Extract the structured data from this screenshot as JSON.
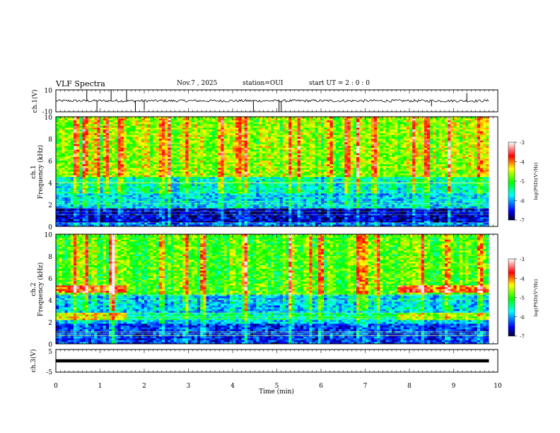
{
  "header": {
    "title": "VLF Spectra",
    "date": "Nov.7 , 2025",
    "station": "station=OUI",
    "start": "start UT =  2 : 0 : 0"
  },
  "panels": {
    "ch1_wave": {
      "ylabel": "ch.1(V)",
      "yticks": [
        "10",
        "-10"
      ]
    },
    "ch1_spec": {
      "ylabel_ch": "ch.1",
      "ylabel": "Frequency (kHz)",
      "yticks": [
        "10",
        "8",
        "6",
        "4",
        "2",
        "0"
      ]
    },
    "ch2_spec": {
      "ylabel_ch": "ch.2",
      "ylabel": "Frequency (kHz)",
      "yticks": [
        "10",
        "8",
        "6",
        "4",
        "2",
        "0"
      ]
    },
    "ch3_wave": {
      "ylabel": "ch.3(V)",
      "yticks": [
        "5",
        "-5"
      ]
    }
  },
  "colorbar": {
    "label": "log(PSD)(V²/Hz)",
    "ticks": [
      "-3",
      "-4",
      "-5",
      "-6",
      "-7"
    ],
    "colors": [
      "#ffffff",
      "#ff0000",
      "#ffff00",
      "#00ff00",
      "#00ffff",
      "#0000ff",
      "#000033"
    ]
  },
  "xaxis": {
    "label": "Time (min)",
    "ticks": [
      "0",
      "1",
      "2",
      "3",
      "4",
      "5",
      "6",
      "7",
      "8",
      "9",
      "10"
    ]
  },
  "chart_data": [
    {
      "type": "line",
      "title": "VLF Spectra",
      "ylabel": "ch.1(V)",
      "xlabel": "Time (min)",
      "xlim": [
        0,
        10
      ],
      "ylim": [
        -10,
        10
      ],
      "data_end_min": 9.8,
      "baseline_v": 0,
      "spikes": [
        {
          "x": 0.7,
          "y": 10
        },
        {
          "x": 0.93,
          "y": -10
        },
        {
          "x": 1.25,
          "y": 10
        },
        {
          "x": 1.6,
          "y": 10
        },
        {
          "x": 1.8,
          "y": -10
        },
        {
          "x": 2.0,
          "y": -8
        },
        {
          "x": 4.47,
          "y": -10
        },
        {
          "x": 5.05,
          "y": -10
        },
        {
          "x": 5.1,
          "y": -10
        },
        {
          "x": 9.3,
          "y": 7
        },
        {
          "x": 8.5,
          "y": -5
        }
      ]
    },
    {
      "type": "heatmap",
      "ylabel": "Frequency (kHz)",
      "xlim": [
        0,
        10
      ],
      "ylim": [
        0,
        10
      ],
      "data_end_min": 9.8,
      "zlim": [
        -7,
        -3
      ],
      "z_unit": "log(PSD)(V²/Hz)",
      "background_z_by_freq": [
        {
          "f": [
            0,
            0.4
          ],
          "z": -6.3
        },
        {
          "f": [
            0.4,
            1.6
          ],
          "z": -6.8
        },
        {
          "f": [
            1.6,
            3.0
          ],
          "z": -6.0
        },
        {
          "f": [
            3.0,
            4.5
          ],
          "z": -5.9
        },
        {
          "f": [
            4.5,
            10
          ],
          "z": -5.0
        }
      ],
      "strong_bursts_min": [
        0.45,
        0.65,
        0.95,
        1.15,
        1.45,
        2.4,
        2.55,
        2.95,
        3.75,
        4.15,
        4.3,
        5.3,
        5.5,
        6.2,
        6.6,
        6.85,
        7.2,
        8.1,
        8.4,
        8.9,
        9.6
      ]
    },
    {
      "type": "heatmap",
      "ylabel": "Frequency (kHz)",
      "xlim": [
        0,
        10
      ],
      "ylim": [
        0,
        10
      ],
      "data_end_min": 9.8,
      "zlim": [
        -7,
        -3
      ],
      "z_unit": "log(PSD)(V²/Hz)",
      "background_z_by_freq": [
        {
          "f": [
            0,
            1.8
          ],
          "z": -6.5
        },
        {
          "f": [
            1.8,
            2.2
          ],
          "z": -6.0
        },
        {
          "f": [
            2.2,
            2.8
          ],
          "z": -5.6
        },
        {
          "f": [
            2.8,
            4.5
          ],
          "z": -6.1
        },
        {
          "f": [
            4.5,
            10
          ],
          "z": -5.2
        }
      ],
      "bands": [
        {
          "t": [
            0,
            1.6
          ],
          "f": [
            4.6,
            5.4
          ],
          "z": -4.2
        },
        {
          "t": [
            7.75,
            9.8
          ],
          "f": [
            4.6,
            5.4
          ],
          "z": -4.3
        },
        {
          "t": [
            0,
            1.6
          ],
          "f": [
            2.2,
            2.8
          ],
          "z": -4.6
        },
        {
          "t": [
            7.75,
            9.8
          ],
          "f": [
            2.2,
            2.8
          ],
          "z": -4.8
        }
      ],
      "strong_bursts_min": [
        0.45,
        0.7,
        1.25,
        1.3,
        2.4,
        2.95,
        3.35,
        4.3,
        5.3,
        5.75,
        6.0,
        6.85,
        7.0,
        7.3,
        8.3,
        8.85,
        9.6
      ]
    },
    {
      "type": "line",
      "ylabel": "ch.3(V)",
      "xlim": [
        0,
        10
      ],
      "ylim": [
        -5,
        5
      ],
      "data_end_min": 9.8,
      "baseline_v": 0
    }
  ]
}
